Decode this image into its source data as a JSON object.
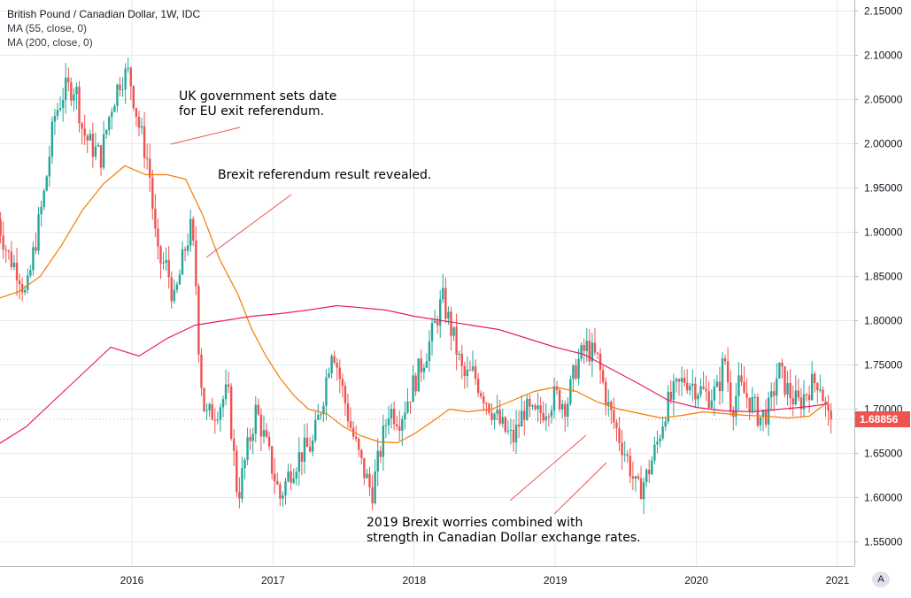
{
  "legend": {
    "title": "British Pound / Canadian Dollar, 1W, IDC",
    "ma1": "MA (55, close, 0)",
    "ma2": "MA (200, close, 0)"
  },
  "last_price": "1.68856",
  "auto_button": "A",
  "annotations": [
    {
      "id": "a1",
      "lines": [
        "UK government sets date",
        "for EU exit referendum."
      ]
    },
    {
      "id": "a2",
      "lines": [
        "Brexit referendum result revealed."
      ]
    },
    {
      "id": "a3",
      "lines": [
        "2019 Brexit worries combined with",
        "strength in Canadian Dollar exchange rates."
      ]
    }
  ],
  "colors": {
    "up": "#26a69a",
    "down": "#ef5350",
    "ma55": "#f57c00",
    "ma200": "#e91e63",
    "grid": "#e6eaef",
    "axis_text": "#131722",
    "pointer": "#ef5350"
  },
  "chart_data": {
    "type": "candlestick",
    "title": "British Pound / Canadian Dollar, 1W, IDC",
    "y_ticks": [
      "2.15000",
      "2.10000",
      "2.05000",
      "2.00000",
      "1.95000",
      "1.90000",
      "1.85000",
      "1.80000",
      "1.75000",
      "1.70000",
      "1.65000",
      "1.60000",
      "1.55000"
    ],
    "y_tick_values": [
      2.15,
      2.1,
      2.05,
      2.0,
      1.95,
      1.9,
      1.85,
      1.8,
      1.75,
      1.7,
      1.65,
      1.6,
      1.55
    ],
    "x_ticks": [
      "2016",
      "2017",
      "2018",
      "2019",
      "2020",
      "2021"
    ],
    "x_tick_values": [
      2016,
      2017,
      2018,
      2019,
      2020,
      2021
    ],
    "x_range": [
      2015.05,
      2020.97
    ],
    "y_range": [
      1.51,
      2.16
    ],
    "last_close": 1.68856,
    "grid": true,
    "close_anchors": [
      [
        2015.05,
        1.915
      ],
      [
        2015.12,
        1.875
      ],
      [
        2015.2,
        1.855
      ],
      [
        2015.25,
        1.825
      ],
      [
        2015.3,
        1.875
      ],
      [
        2015.38,
        1.945
      ],
      [
        2015.45,
        2.03
      ],
      [
        2015.52,
        2.06
      ],
      [
        2015.6,
        2.065
      ],
      [
        2015.65,
        2.015
      ],
      [
        2015.7,
        2.0
      ],
      [
        2015.78,
        1.985
      ],
      [
        2015.85,
        2.04
      ],
      [
        2015.92,
        2.075
      ],
      [
        2015.98,
        2.08
      ],
      [
        2016.05,
        2.02
      ],
      [
        2016.12,
        1.975
      ],
      [
        2016.18,
        1.87
      ],
      [
        2016.25,
        1.86
      ],
      [
        2016.3,
        1.82
      ],
      [
        2016.38,
        1.885
      ],
      [
        2016.42,
        1.905
      ],
      [
        2016.45,
        1.855
      ],
      [
        2016.48,
        1.75
      ],
      [
        2016.52,
        1.69
      ],
      [
        2016.6,
        1.7
      ],
      [
        2016.68,
        1.72
      ],
      [
        2016.75,
        1.6
      ],
      [
        2016.8,
        1.64
      ],
      [
        2016.88,
        1.7
      ],
      [
        2016.95,
        1.66
      ],
      [
        2017.05,
        1.6
      ],
      [
        2017.12,
        1.63
      ],
      [
        2017.2,
        1.65
      ],
      [
        2017.28,
        1.66
      ],
      [
        2017.35,
        1.71
      ],
      [
        2017.42,
        1.775
      ],
      [
        2017.48,
        1.73
      ],
      [
        2017.55,
        1.68
      ],
      [
        2017.62,
        1.64
      ],
      [
        2017.7,
        1.605
      ],
      [
        2017.75,
        1.645
      ],
      [
        2017.82,
        1.7
      ],
      [
        2017.9,
        1.69
      ],
      [
        2017.95,
        1.71
      ],
      [
        2018.05,
        1.75
      ],
      [
        2018.12,
        1.78
      ],
      [
        2018.2,
        1.825
      ],
      [
        2018.28,
        1.78
      ],
      [
        2018.35,
        1.735
      ],
      [
        2018.42,
        1.74
      ],
      [
        2018.48,
        1.72
      ],
      [
        2018.55,
        1.7
      ],
      [
        2018.62,
        1.68
      ],
      [
        2018.7,
        1.665
      ],
      [
        2018.78,
        1.7
      ],
      [
        2018.85,
        1.69
      ],
      [
        2018.92,
        1.7
      ],
      [
        2019.0,
        1.715
      ],
      [
        2019.08,
        1.705
      ],
      [
        2019.15,
        1.75
      ],
      [
        2019.22,
        1.77
      ],
      [
        2019.3,
        1.755
      ],
      [
        2019.38,
        1.7
      ],
      [
        2019.45,
        1.67
      ],
      [
        2019.52,
        1.64
      ],
      [
        2019.58,
        1.605
      ],
      [
        2019.65,
        1.625
      ],
      [
        2019.72,
        1.66
      ],
      [
        2019.78,
        1.7
      ],
      [
        2019.85,
        1.72
      ],
      [
        2019.92,
        1.735
      ],
      [
        2020.0,
        1.725
      ],
      [
        2020.08,
        1.715
      ],
      [
        2020.15,
        1.72
      ],
      [
        2020.2,
        1.76
      ],
      [
        2020.25,
        1.7
      ],
      [
        2020.3,
        1.725
      ],
      [
        2020.38,
        1.71
      ],
      [
        2020.45,
        1.69
      ],
      [
        2020.52,
        1.7
      ],
      [
        2020.58,
        1.745
      ],
      [
        2020.65,
        1.72
      ],
      [
        2020.72,
        1.705
      ],
      [
        2020.8,
        1.725
      ],
      [
        2020.87,
        1.735
      ],
      [
        2020.93,
        1.689
      ]
    ],
    "series": [
      {
        "name": "MA (55, close, 0)",
        "points": [
          [
            2015.05,
            1.825
          ],
          [
            2015.2,
            1.833
          ],
          [
            2015.35,
            1.85
          ],
          [
            2015.5,
            1.885
          ],
          [
            2015.65,
            1.925
          ],
          [
            2015.8,
            1.955
          ],
          [
            2015.95,
            1.975
          ],
          [
            2016.1,
            1.965
          ],
          [
            2016.25,
            1.965
          ],
          [
            2016.38,
            1.96
          ],
          [
            2016.5,
            1.92
          ],
          [
            2016.62,
            1.87
          ],
          [
            2016.75,
            1.83
          ],
          [
            2016.85,
            1.79
          ],
          [
            2016.95,
            1.76
          ],
          [
            2017.05,
            1.735
          ],
          [
            2017.15,
            1.715
          ],
          [
            2017.25,
            1.7
          ],
          [
            2017.38,
            1.695
          ],
          [
            2017.5,
            1.68
          ],
          [
            2017.62,
            1.67
          ],
          [
            2017.75,
            1.663
          ],
          [
            2017.88,
            1.662
          ],
          [
            2018.0,
            1.672
          ],
          [
            2018.12,
            1.685
          ],
          [
            2018.25,
            1.7
          ],
          [
            2018.38,
            1.697
          ],
          [
            2018.55,
            1.7
          ],
          [
            2018.7,
            1.71
          ],
          [
            2018.85,
            1.72
          ],
          [
            2019.0,
            1.725
          ],
          [
            2019.15,
            1.72
          ],
          [
            2019.3,
            1.708
          ],
          [
            2019.45,
            1.7
          ],
          [
            2019.6,
            1.695
          ],
          [
            2019.75,
            1.69
          ],
          [
            2019.9,
            1.693
          ],
          [
            2020.05,
            1.697
          ],
          [
            2020.2,
            1.695
          ],
          [
            2020.35,
            1.693
          ],
          [
            2020.5,
            1.692
          ],
          [
            2020.65,
            1.69
          ],
          [
            2020.8,
            1.692
          ],
          [
            2020.93,
            1.708
          ]
        ]
      },
      {
        "name": "MA (200, close, 0)",
        "points": [
          [
            2015.05,
            1.66
          ],
          [
            2015.25,
            1.68
          ],
          [
            2015.45,
            1.71
          ],
          [
            2015.65,
            1.74
          ],
          [
            2015.85,
            1.77
          ],
          [
            2016.05,
            1.76
          ],
          [
            2016.25,
            1.78
          ],
          [
            2016.45,
            1.795
          ],
          [
            2016.65,
            1.8
          ],
          [
            2016.85,
            1.805
          ],
          [
            2017.05,
            1.808
          ],
          [
            2017.25,
            1.812
          ],
          [
            2017.45,
            1.817
          ],
          [
            2017.6,
            1.815
          ],
          [
            2017.8,
            1.812
          ],
          [
            2018.0,
            1.805
          ],
          [
            2018.2,
            1.8
          ],
          [
            2018.4,
            1.795
          ],
          [
            2018.6,
            1.79
          ],
          [
            2018.8,
            1.78
          ],
          [
            2019.0,
            1.77
          ],
          [
            2019.2,
            1.762
          ],
          [
            2019.4,
            1.745
          ],
          [
            2019.6,
            1.728
          ],
          [
            2019.8,
            1.71
          ],
          [
            2020.0,
            1.702
          ],
          [
            2020.2,
            1.698
          ],
          [
            2020.4,
            1.697
          ],
          [
            2020.6,
            1.7
          ],
          [
            2020.8,
            1.703
          ],
          [
            2020.93,
            1.706
          ]
        ]
      }
    ]
  }
}
